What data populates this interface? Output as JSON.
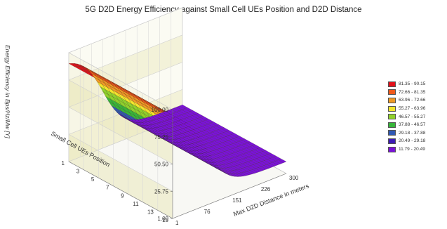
{
  "chart_data": {
    "type": "surface3d",
    "title": "5G D2D Energy Efficiency against Small Cell UEs Position and D2D Distance",
    "zlabel": "Energy Efficiency in Bps/Hz/Mw [Y]",
    "xlabel": "Max D2D Distance in meters",
    "ylabel": "Small Cell UEs Position",
    "z_ticks": [
      "1.00",
      "25.75",
      "50.50",
      "75.25",
      "100.00"
    ],
    "zlim": [
      1,
      100
    ],
    "x_ticks": [
      "1",
      "76",
      "151",
      "226",
      "300"
    ],
    "xlim": [
      1,
      300
    ],
    "y_ticks": [
      "1",
      "3",
      "5",
      "7",
      "9",
      "11",
      "13",
      "15"
    ],
    "ylim": [
      1,
      15
    ],
    "grid": true,
    "legend_position": "right",
    "legend": [
      {
        "label": "81.35 - 90.15",
        "color": "#e3111b"
      },
      {
        "label": "72.66 - 81.35",
        "color": "#ef5a1c"
      },
      {
        "label": "63.96 - 72.66",
        "color": "#f09a25"
      },
      {
        "label": "55.27 - 63.96",
        "color": "#f3e52c"
      },
      {
        "label": "46.57 - 55.27",
        "color": "#8fd12b"
      },
      {
        "label": "37.88 - 46.57",
        "color": "#37b53a"
      },
      {
        "label": "29.18 - 37.88",
        "color": "#2f58b3"
      },
      {
        "label": "20.49 - 29.18",
        "color": "#3d1bb5"
      },
      {
        "label": "11.79 - 20.49",
        "color": "#7a12d8"
      }
    ],
    "surface_shape": "Energy efficiency is about 90 at the shortest D2D distance and falls in an S-shaped curve to about 12 at the longest D2D distance, nearly uniform across small cell UE positions."
  }
}
